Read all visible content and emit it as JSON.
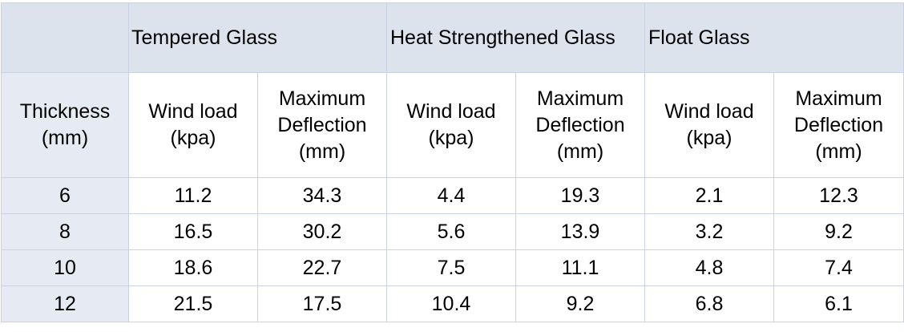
{
  "header": {
    "groups": [
      "Tempered  Glass",
      "Heat Strengthened Glass",
      "Float Glass"
    ]
  },
  "subheader": {
    "thickness": [
      "Thickness",
      "(mm)"
    ],
    "wind_load": [
      "Wind load",
      "(kpa)"
    ],
    "max_deflection": [
      "Maximum",
      "Deflection",
      "(mm)"
    ]
  },
  "rows": [
    {
      "thickness": "6",
      "cells": [
        "11.2",
        "34.3",
        "4.4",
        "19.3",
        "2.1",
        "12.3"
      ]
    },
    {
      "thickness": "8",
      "cells": [
        "16.5",
        "30.2",
        "5.6",
        "13.9",
        "3.2",
        "9.2"
      ]
    },
    {
      "thickness": "10",
      "cells": [
        "18.6",
        "22.7",
        "7.5",
        "11.1",
        "4.8",
        "7.4"
      ]
    },
    {
      "thickness": "12",
      "cells": [
        "21.5",
        "17.5",
        "10.4",
        "9.2",
        "6.8",
        "6.1"
      ]
    }
  ]
}
